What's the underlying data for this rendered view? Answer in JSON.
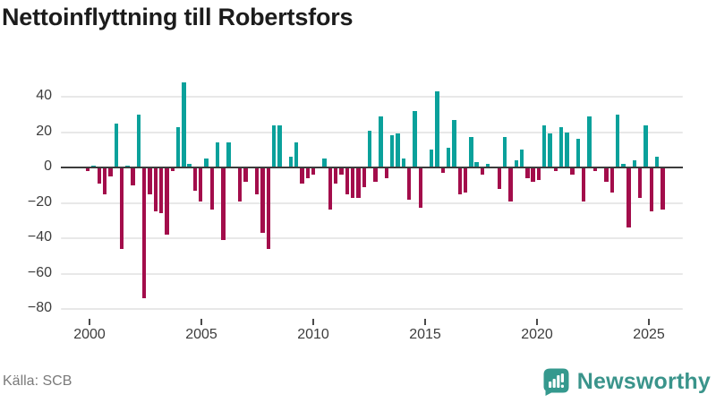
{
  "title": "Nettoinflyttning till Robertsfors",
  "source": "Källa: SCB",
  "branding": {
    "wordmark": "Newsworthy",
    "icon": "newsworthy-bar-chart-pin-icon",
    "color": "#3a948b",
    "icon_color": "#35998e"
  },
  "chart_data": {
    "type": "bar",
    "title": "Nettoinflyttning till Robertsfors",
    "frequency": "quarterly",
    "start_period": "2000 Q1",
    "end_period": "2025 Q3",
    "xlabel": "",
    "ylabel": "",
    "grid": true,
    "ylim": [
      -80,
      48
    ],
    "y_ticks": [
      40,
      20,
      0,
      -20,
      -40,
      -60,
      -80
    ],
    "y_tick_labels": [
      "40",
      "20",
      "0",
      "−20",
      "−40",
      "−60",
      "−80"
    ],
    "x_ticks": [
      2000,
      2005,
      2010,
      2015,
      2020,
      2025
    ],
    "x_tick_labels": [
      "2000",
      "2005",
      "2010",
      "2015",
      "2020",
      "2025"
    ],
    "colors": {
      "positive": "#0aa19b",
      "negative": "#a30d4b",
      "baseline": "#3c3c3c",
      "gridline": "#e8e8e8"
    },
    "values": [
      -2,
      1,
      -9,
      -15,
      -5,
      25,
      -46,
      1,
      -10,
      30,
      -74,
      -15,
      -25,
      -26,
      -38,
      -2,
      23,
      48,
      2,
      -13,
      -19,
      5,
      -24,
      14,
      -41,
      14,
      0,
      -19,
      -8,
      0,
      -15,
      -37,
      -46,
      24,
      24,
      0,
      6,
      14,
      -9,
      -6,
      -4,
      0,
      5,
      -24,
      -9,
      -4,
      -15,
      -17,
      -17,
      -11,
      21,
      -8,
      29,
      -6,
      18,
      19,
      5,
      -18,
      32,
      -23,
      0,
      10,
      43,
      -3,
      11,
      27,
      -15,
      -14,
      17,
      3,
      -4,
      2,
      0,
      -12,
      17,
      -19,
      4,
      10,
      -6,
      -8,
      -7,
      24,
      19,
      -2,
      23,
      20,
      -4,
      16,
      -19,
      29,
      -2,
      0,
      -8,
      -14,
      30,
      2,
      -34,
      4,
      -17,
      24,
      -25,
      6,
      -24
    ]
  }
}
